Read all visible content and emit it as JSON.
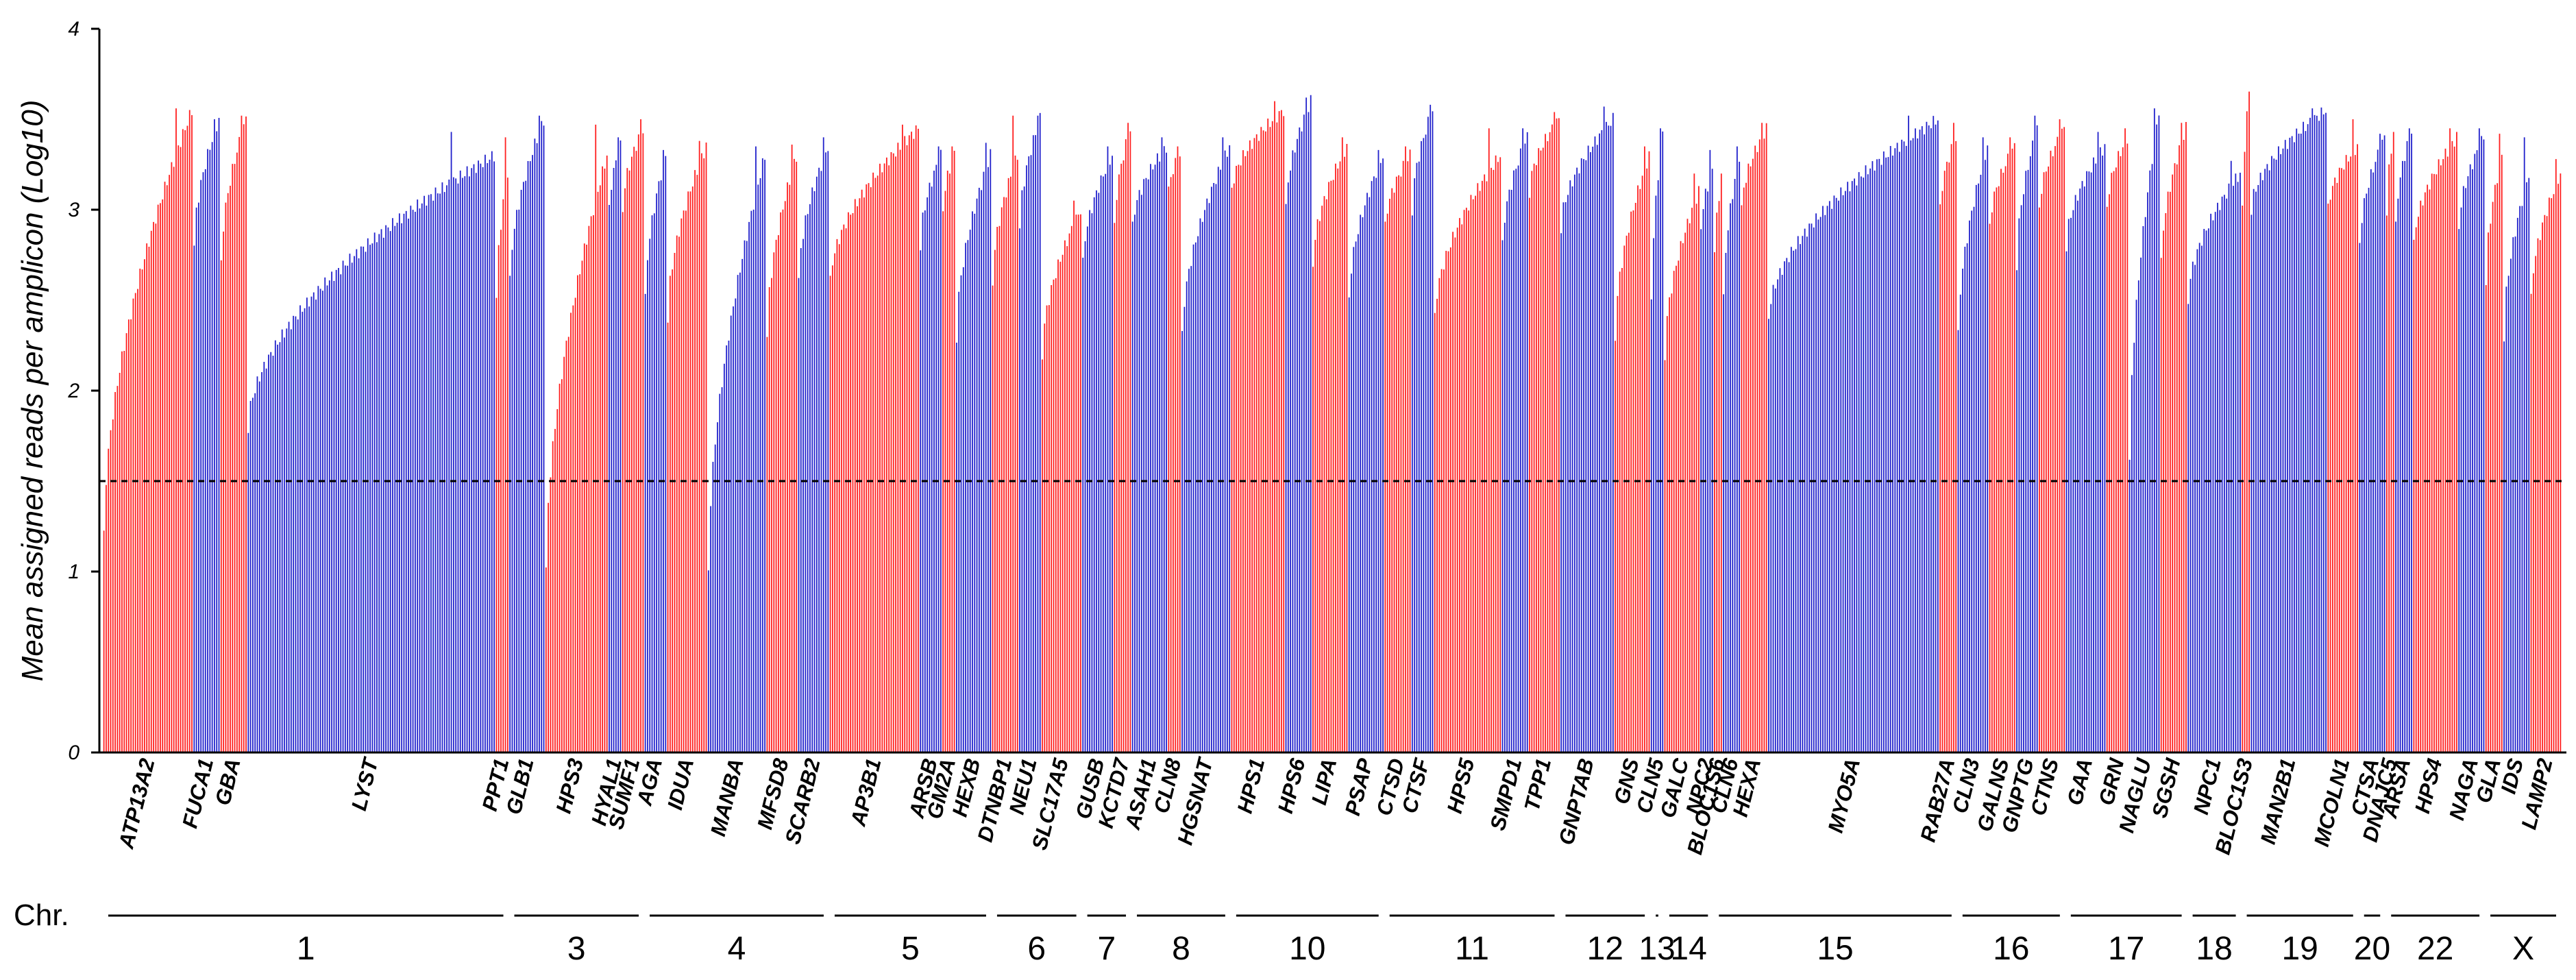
{
  "chart_data": {
    "type": "bar",
    "title": "",
    "ylabel": "Mean assigned reads per amplicon (Log10)",
    "xlabel": "",
    "ylim": [
      0,
      4
    ],
    "yticks": [
      "0",
      "1",
      "2",
      "3",
      "4"
    ],
    "threshold": 1.5,
    "colors": {
      "red": "#ff2020",
      "blue": "#2222cc",
      "threshold": "#000000"
    },
    "chromosome_prefix": "Chr.",
    "genes": [
      {
        "name": "ATP13A2",
        "color": "red",
        "n": 40,
        "start": 1.2,
        "end": 3.55,
        "peak": 3.56
      },
      {
        "name": "FUCA1",
        "color": "blue",
        "n": 12,
        "start": 2.8,
        "end": 3.5,
        "peak": 3.5
      },
      {
        "name": "GBA",
        "color": "red",
        "n": 12,
        "start": 2.7,
        "end": 3.5,
        "peak": 3.52
      },
      {
        "name": "LYST",
        "color": "blue",
        "n": 110,
        "start": 1.8,
        "end": 3.3,
        "peak": 3.43
      },
      {
        "name": "PPT1",
        "color": "red",
        "n": 6,
        "start": 2.5,
        "end": 3.2,
        "peak": 3.4
      },
      {
        "name": "GLB1",
        "color": "blue",
        "n": 16,
        "start": 2.6,
        "end": 3.5,
        "peak": 3.52
      },
      {
        "name": "HPS3",
        "color": "red",
        "n": 28,
        "start": 1.0,
        "end": 3.3,
        "peak": 3.47
      },
      {
        "name": "HYAL1",
        "color": "blue",
        "n": 6,
        "start": 3.0,
        "end": 3.35,
        "peak": 3.4
      },
      {
        "name": "SUMF1",
        "color": "red",
        "n": 10,
        "start": 3.0,
        "end": 3.45,
        "peak": 3.5
      },
      {
        "name": "AGA",
        "color": "blue",
        "n": 10,
        "start": 2.5,
        "end": 3.3,
        "peak": 3.33
      },
      {
        "name": "IDUA",
        "color": "red",
        "n": 18,
        "start": 2.4,
        "end": 3.35,
        "peak": 3.38
      },
      {
        "name": "MANBA",
        "color": "blue",
        "n": 26,
        "start": 1.0,
        "end": 3.3,
        "peak": 3.35
      },
      {
        "name": "MFSD8",
        "color": "red",
        "n": 14,
        "start": 2.3,
        "end": 3.3,
        "peak": 3.36
      },
      {
        "name": "SCARB2",
        "color": "blue",
        "n": 14,
        "start": 2.6,
        "end": 3.35,
        "peak": 3.4
      },
      {
        "name": "AP3B1",
        "color": "red",
        "n": 40,
        "start": 2.6,
        "end": 3.45,
        "peak": 3.47
      },
      {
        "name": "ARSB",
        "color": "blue",
        "n": 10,
        "start": 2.8,
        "end": 3.3,
        "peak": 3.35
      },
      {
        "name": "GM2A",
        "color": "red",
        "n": 6,
        "start": 3.0,
        "end": 3.3,
        "peak": 3.35
      },
      {
        "name": "HEXB",
        "color": "blue",
        "n": 16,
        "start": 2.3,
        "end": 3.3,
        "peak": 3.37
      },
      {
        "name": "DTNBP1",
        "color": "red",
        "n": 12,
        "start": 2.6,
        "end": 3.3,
        "peak": 3.52
      },
      {
        "name": "NEU1",
        "color": "blue",
        "n": 10,
        "start": 2.9,
        "end": 3.5,
        "peak": 3.52
      },
      {
        "name": "SLC17A5",
        "color": "red",
        "n": 18,
        "start": 2.2,
        "end": 3.0,
        "peak": 3.05
      },
      {
        "name": "GUSB",
        "color": "blue",
        "n": 14,
        "start": 2.7,
        "end": 3.3,
        "peak": 3.35
      },
      {
        "name": "KCTD7",
        "color": "red",
        "n": 8,
        "start": 2.9,
        "end": 3.45,
        "peak": 3.48
      },
      {
        "name": "ASAH1",
        "color": "blue",
        "n": 16,
        "start": 2.9,
        "end": 3.35,
        "peak": 3.4
      },
      {
        "name": "CLN8",
        "color": "red",
        "n": 6,
        "start": 3.1,
        "end": 3.3,
        "peak": 3.35
      },
      {
        "name": "HGSNAT",
        "color": "blue",
        "n": 22,
        "start": 2.3,
        "end": 3.35,
        "peak": 3.4
      },
      {
        "name": "HPS1",
        "color": "red",
        "n": 24,
        "start": 3.1,
        "end": 3.55,
        "peak": 3.6
      },
      {
        "name": "HPS6",
        "color": "blue",
        "n": 12,
        "start": 3.0,
        "end": 3.6,
        "peak": 3.62
      },
      {
        "name": "LIPA",
        "color": "red",
        "n": 16,
        "start": 2.7,
        "end": 3.35,
        "peak": 3.4
      },
      {
        "name": "PSAP",
        "color": "blue",
        "n": 16,
        "start": 2.5,
        "end": 3.3,
        "peak": 3.33
      },
      {
        "name": "CTSD",
        "color": "red",
        "n": 12,
        "start": 2.9,
        "end": 3.3,
        "peak": 3.35
      },
      {
        "name": "CTSF",
        "color": "blue",
        "n": 10,
        "start": 3.0,
        "end": 3.55,
        "peak": 3.58
      },
      {
        "name": "HPS5",
        "color": "red",
        "n": 30,
        "start": 2.4,
        "end": 3.3,
        "peak": 3.45
      },
      {
        "name": "SMPD1",
        "color": "blue",
        "n": 12,
        "start": 2.8,
        "end": 3.4,
        "peak": 3.45
      },
      {
        "name": "TPP1",
        "color": "red",
        "n": 14,
        "start": 3.1,
        "end": 3.5,
        "peak": 3.54
      },
      {
        "name": "GNPTAB",
        "color": "blue",
        "n": 24,
        "start": 2.9,
        "end": 3.5,
        "peak": 3.57
      },
      {
        "name": "GNS",
        "color": "red",
        "n": 16,
        "start": 2.3,
        "end": 3.3,
        "peak": 3.35
      },
      {
        "name": "CLN5",
        "color": "blue",
        "n": 6,
        "start": 2.5,
        "end": 3.4,
        "peak": 3.45
      },
      {
        "name": "GALC",
        "color": "red",
        "n": 16,
        "start": 2.2,
        "end": 3.1,
        "peak": 3.2
      },
      {
        "name": "NPC2",
        "color": "blue",
        "n": 6,
        "start": 2.9,
        "end": 3.2,
        "peak": 3.33
      },
      {
        "name": "BLOC1S6",
        "color": "red",
        "n": 4,
        "start": 2.8,
        "end": 3.1,
        "peak": 3.2
      },
      {
        "name": "CLN6",
        "color": "blue",
        "n": 8,
        "start": 2.5,
        "end": 3.3,
        "peak": 3.35
      },
      {
        "name": "HEXA",
        "color": "red",
        "n": 12,
        "start": 3.0,
        "end": 3.45,
        "peak": 3.48
      },
      {
        "name": "MYO5A",
        "color": "blue",
        "n": 76,
        "start": 2.4,
        "end": 3.5,
        "peak": 3.52
      },
      {
        "name": "RAB27A",
        "color": "red",
        "n": 8,
        "start": 3.0,
        "end": 3.4,
        "peak": 3.48
      },
      {
        "name": "CLN3",
        "color": "blue",
        "n": 14,
        "start": 2.3,
        "end": 3.35,
        "peak": 3.4
      },
      {
        "name": "GALNS",
        "color": "red",
        "n": 12,
        "start": 2.9,
        "end": 3.35,
        "peak": 3.4
      },
      {
        "name": "GNPTG",
        "color": "blue",
        "n": 10,
        "start": 2.7,
        "end": 3.45,
        "peak": 3.52
      },
      {
        "name": "CTNS",
        "color": "red",
        "n": 12,
        "start": 3.0,
        "end": 3.45,
        "peak": 3.5
      },
      {
        "name": "GAA",
        "color": "blue",
        "n": 18,
        "start": 2.8,
        "end": 3.35,
        "peak": 3.43
      },
      {
        "name": "GRN",
        "color": "red",
        "n": 10,
        "start": 3.0,
        "end": 3.4,
        "peak": 3.45
      },
      {
        "name": "NAGLU",
        "color": "blue",
        "n": 14,
        "start": 1.6,
        "end": 3.55,
        "peak": 3.56
      },
      {
        "name": "SGSH",
        "color": "red",
        "n": 12,
        "start": 2.7,
        "end": 3.45,
        "peak": 3.48
      },
      {
        "name": "NPC1",
        "color": "blue",
        "n": 24,
        "start": 2.5,
        "end": 3.2,
        "peak": 3.27
      },
      {
        "name": "BLOC1S3",
        "color": "red",
        "n": 4,
        "start": 3.0,
        "end": 3.65,
        "peak": 3.65
      },
      {
        "name": "MAN2B1",
        "color": "blue",
        "n": 34,
        "start": 3.0,
        "end": 3.55,
        "peak": 3.56
      },
      {
        "name": "MCOLN1",
        "color": "red",
        "n": 14,
        "start": 3.0,
        "end": 3.35,
        "peak": 3.5
      },
      {
        "name": "CTSA",
        "color": "blue",
        "n": 12,
        "start": 2.8,
        "end": 3.4,
        "peak": 3.42
      },
      {
        "name": "DNAJC5",
        "color": "red",
        "n": 4,
        "start": 3.0,
        "end": 3.4,
        "peak": 3.43
      },
      {
        "name": "ARSA",
        "color": "blue",
        "n": 8,
        "start": 2.9,
        "end": 3.45,
        "peak": 3.45
      },
      {
        "name": "HPS4",
        "color": "red",
        "n": 20,
        "start": 2.8,
        "end": 3.4,
        "peak": 3.45
      },
      {
        "name": "NAGA",
        "color": "blue",
        "n": 12,
        "start": 2.9,
        "end": 3.4,
        "peak": 3.45
      },
      {
        "name": "GLA",
        "color": "red",
        "n": 8,
        "start": 2.6,
        "end": 3.3,
        "peak": 3.42
      },
      {
        "name": "IDS",
        "color": "blue",
        "n": 12,
        "start": 2.3,
        "end": 3.2,
        "peak": 3.4
      },
      {
        "name": "LAMP2",
        "color": "red",
        "n": 14,
        "start": 2.5,
        "end": 3.2,
        "peak": 3.28
      }
    ],
    "chromosomes": [
      {
        "label": "1",
        "first": "ATP13A2",
        "last": "PPT1"
      },
      {
        "label": "3",
        "first": "GLB1",
        "last": "SUMF1"
      },
      {
        "label": "4",
        "first": "AGA",
        "last": "SCARB2"
      },
      {
        "label": "5",
        "first": "AP3B1",
        "last": "HEXB"
      },
      {
        "label": "6",
        "first": "DTNBP1",
        "last": "SLC17A5"
      },
      {
        "label": "7",
        "first": "GUSB",
        "last": "KCTD7"
      },
      {
        "label": "8",
        "first": "ASAH1",
        "last": "HGSNAT"
      },
      {
        "label": "10",
        "first": "HPS1",
        "last": "PSAP"
      },
      {
        "label": "11",
        "first": "CTSD",
        "last": "TPP1"
      },
      {
        "label": "12",
        "first": "GNPTAB",
        "last": "GNS"
      },
      {
        "label": "13",
        "first": "CLN5",
        "last": "CLN5"
      },
      {
        "label": "14",
        "first": "GALC",
        "last": "NPC2"
      },
      {
        "label": "15",
        "first": "BLOC1S6",
        "last": "RAB27A"
      },
      {
        "label": "16",
        "first": "CLN3",
        "last": "CTNS"
      },
      {
        "label": "17",
        "first": "GAA",
        "last": "SGSH"
      },
      {
        "label": "18",
        "first": "NPC1",
        "last": "NPC1"
      },
      {
        "label": "19",
        "first": "BLOC1S3",
        "last": "MCOLN1"
      },
      {
        "label": "20",
        "first": "CTSA",
        "last": "CTSA"
      },
      {
        "label": "22",
        "first": "DNAJC5",
        "last": "NAGA"
      },
      {
        "label": "X",
        "first": "GLA",
        "last": "LAMP2"
      }
    ]
  }
}
